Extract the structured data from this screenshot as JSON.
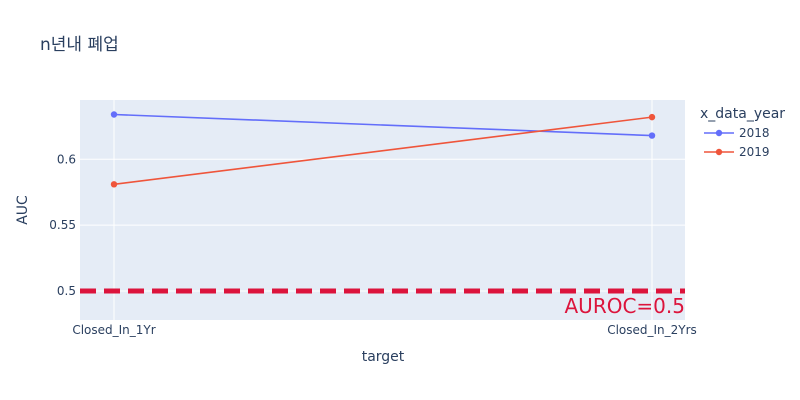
{
  "chart_data": {
    "type": "line",
    "title": "n년내 폐업",
    "xlabel": "target",
    "ylabel": "AUC",
    "categories": [
      "Closed_In_1Yr",
      "Closed_In_2Yrs"
    ],
    "ylim": [
      0.478,
      0.645
    ],
    "yticks": [
      0.5,
      0.55,
      0.6
    ],
    "ytick_labels": [
      "0.5",
      "0.55",
      "0.6"
    ],
    "grid": true,
    "legend": {
      "title": "x_data_year",
      "placement": "right"
    },
    "series": [
      {
        "name": "2018",
        "color": "#636efa",
        "values": [
          0.634,
          0.618
        ]
      },
      {
        "name": "2019",
        "color": "#ef553b",
        "values": [
          0.581,
          0.632
        ]
      }
    ],
    "reference_line": {
      "y": 0.5,
      "color": "#dc143c",
      "style": "dashed"
    },
    "annotation": {
      "text": "AUROC=0.5",
      "color": "#dc143c"
    },
    "colors": {
      "plot_bg": "#e5ecf6",
      "grid": "#ffffff",
      "text": "#2a3f5f"
    }
  }
}
